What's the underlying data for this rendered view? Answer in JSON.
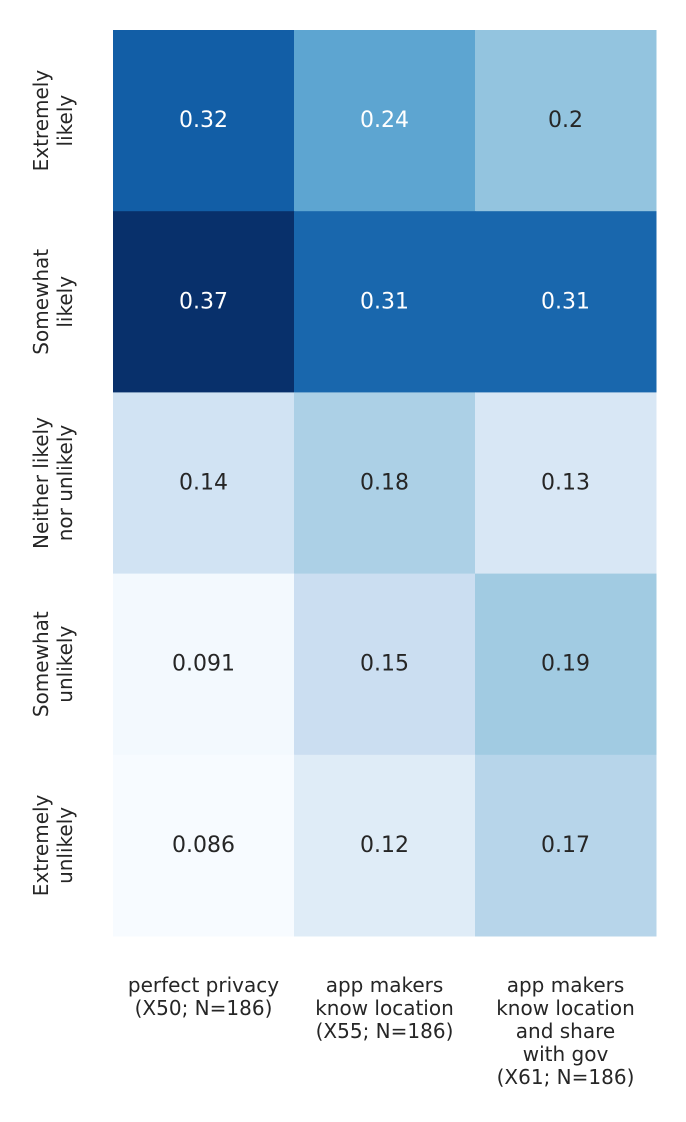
{
  "chart_data": {
    "type": "heatmap",
    "title": "",
    "xlabel": "",
    "ylabel": "",
    "colormap": "Blues",
    "colorbar": false,
    "rows": [
      [
        "Extremely",
        "likely"
      ],
      [
        "Somewhat",
        "likely"
      ],
      [
        "Neither likely",
        "nor unlikely"
      ],
      [
        "Somewhat",
        "unlikely"
      ],
      [
        "Extremely",
        "unlikely"
      ]
    ],
    "columns": [
      [
        "perfect privacy",
        "(X50; N=186)"
      ],
      [
        "app makers",
        "know location",
        "(X55; N=186)"
      ],
      [
        "app makers",
        "know location",
        "and share",
        "with gov",
        "(X61; N=186)"
      ]
    ],
    "values": [
      [
        0.32,
        0.24,
        0.2
      ],
      [
        0.37,
        0.31,
        0.31
      ],
      [
        0.14,
        0.18,
        0.13
      ],
      [
        0.091,
        0.15,
        0.19
      ],
      [
        0.086,
        0.12,
        0.17
      ]
    ],
    "value_labels": [
      [
        "0.32",
        "0.24",
        "0.2"
      ],
      [
        "0.37",
        "0.31",
        "0.31"
      ],
      [
        "0.14",
        "0.18",
        "0.13"
      ],
      [
        "0.091",
        "0.15",
        "0.19"
      ],
      [
        "0.086",
        "0.12",
        "0.17"
      ]
    ],
    "color_range": [
      0.086,
      0.37
    ],
    "colors": {
      "light_text": "#ffffff",
      "dark_text": "#262626",
      "tick_text": "#262626"
    }
  }
}
